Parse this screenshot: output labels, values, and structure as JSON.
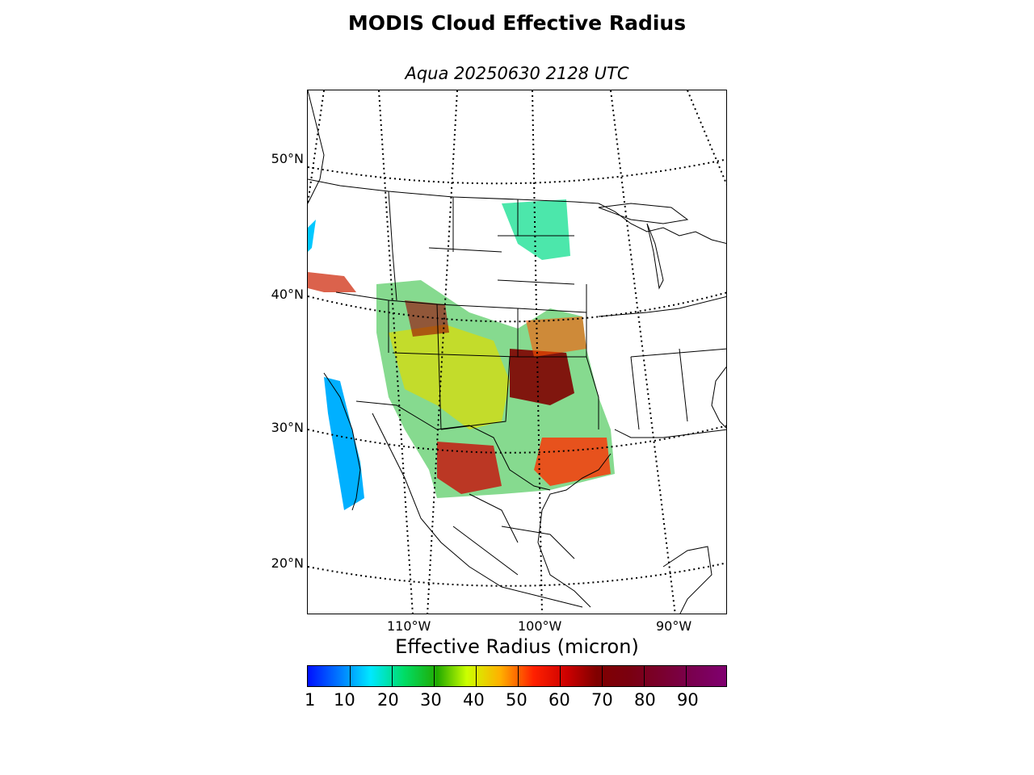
{
  "title": "MODIS Cloud Effective Radius",
  "subtitle": "Aqua 20250630 2128 UTC",
  "lat_labels": [
    "50°N",
    "40°N",
    "30°N",
    "20°N"
  ],
  "lon_labels": [
    "110°W",
    "100°W",
    "90°W"
  ],
  "colorbar": {
    "title": "Effective Radius (micron)",
    "ticks": [
      "1",
      "10",
      "20",
      "30",
      "40",
      "50",
      "60",
      "70",
      "80",
      "90"
    ],
    "colors": [
      "#0010ff",
      "#0080ff",
      "#00e8ff",
      "#00dd66",
      "#22aa00",
      "#ccff00",
      "#ffb000",
      "#ff2000",
      "#cc0000",
      "#800000",
      "#7a0010",
      "#7a0030",
      "#7a0050",
      "#800070"
    ]
  },
  "map": {
    "projection": "lambert-conformal",
    "region": "Central United States & Mexico",
    "gridlines": "dotted",
    "colors": {
      "coast": "#000000",
      "high": "#800000",
      "mid": "#ff2000",
      "low": "#00e8ff"
    }
  }
}
